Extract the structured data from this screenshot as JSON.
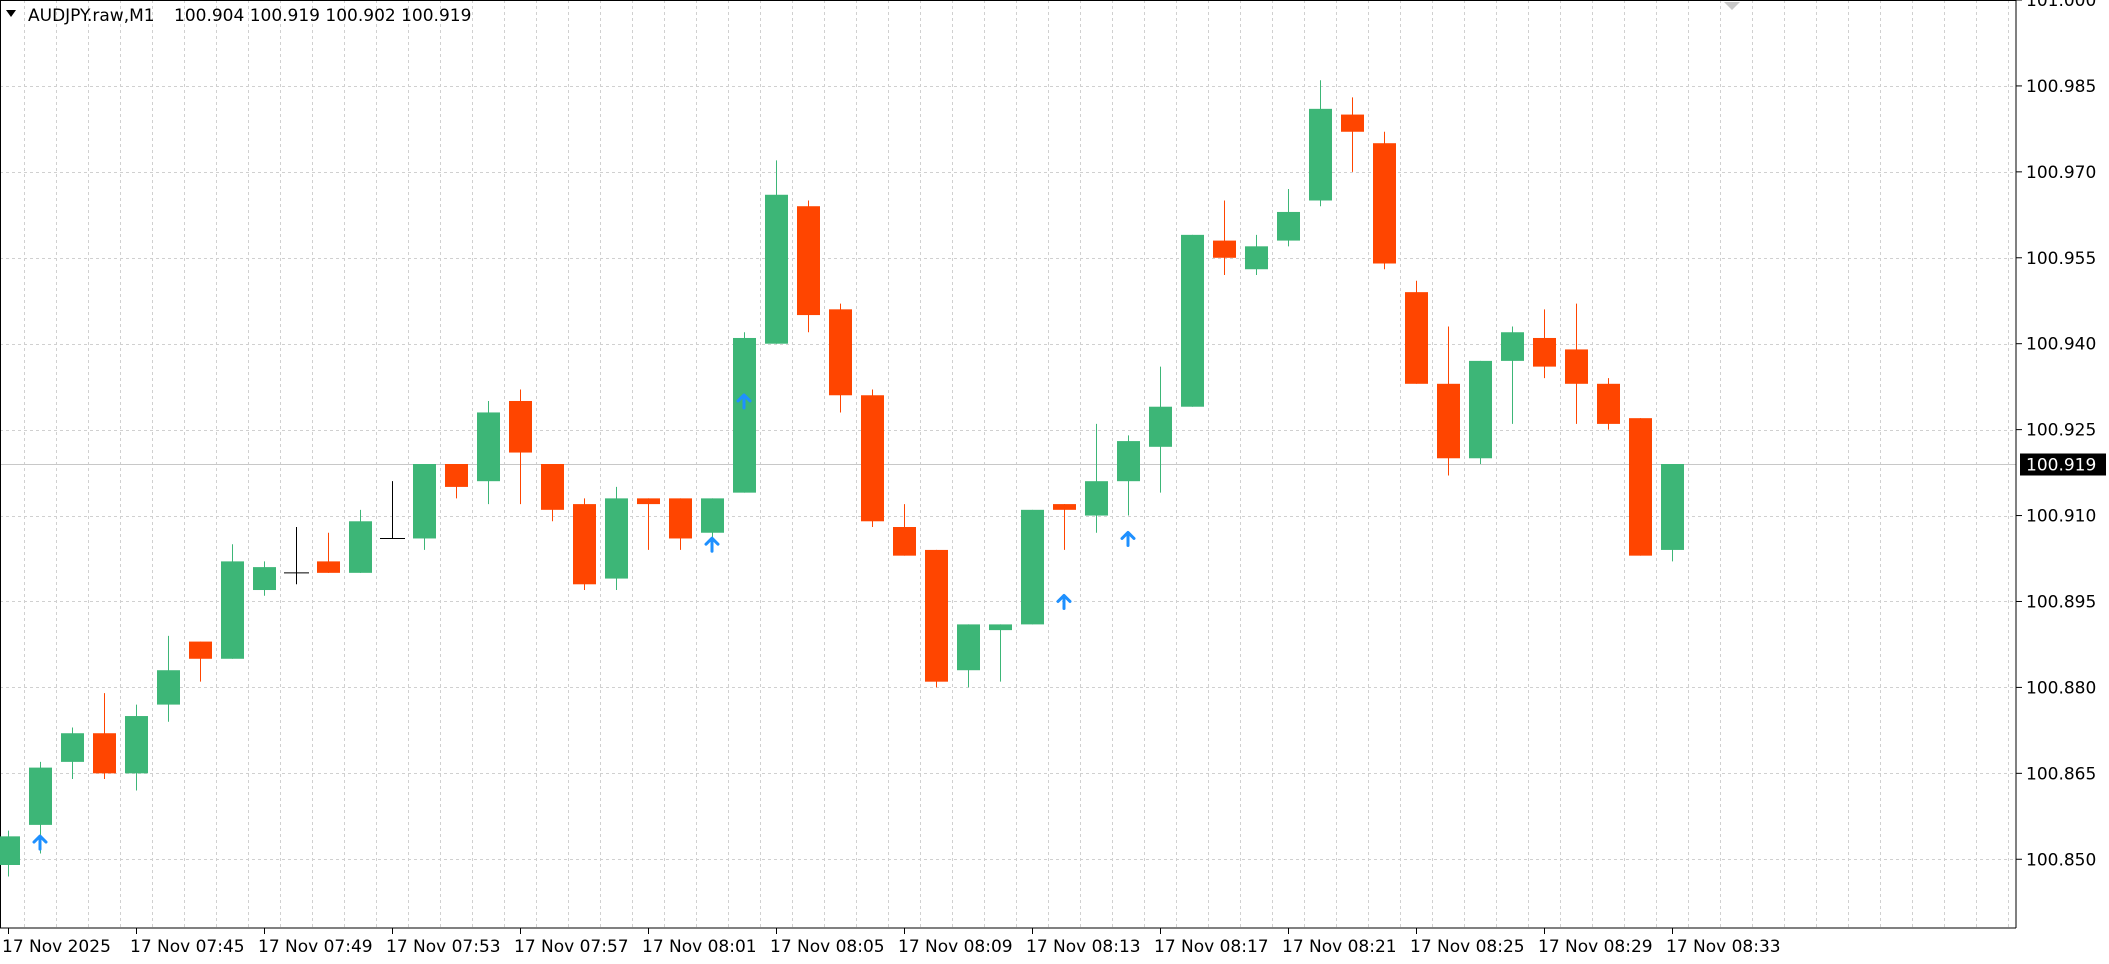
{
  "header": {
    "collapse_icon": "triangle-down-icon",
    "symbol_text": "AUDJPY.raw,M1",
    "ohlc_text": "100.904 100.919 100.902 100.919"
  },
  "colors": {
    "bull": "#3db677",
    "bear": "#ff4500",
    "doji": "#000000",
    "grid": "#d0d0d0",
    "arrow": "#1e90ff",
    "current_line": "#c8c8c8",
    "current_label_bg": "#000000",
    "current_label_fg": "#ffffff"
  },
  "chart_data": {
    "type": "candlestick",
    "symbol": "AUDJPY.raw",
    "timeframe": "M1",
    "ylim": [
      100.838,
      101.0
    ],
    "y_ticks": [
      "100.850",
      "100.865",
      "100.880",
      "100.895",
      "100.910",
      "100.925",
      "100.940",
      "100.955",
      "100.970",
      "100.985",
      "101.000"
    ],
    "current_price": "100.919",
    "x_labels": [
      {
        "index": 0,
        "text": "17 Nov 2025"
      },
      {
        "index": 4,
        "text": "17 Nov 07:45"
      },
      {
        "index": 8,
        "text": "17 Nov 07:49"
      },
      {
        "index": 12,
        "text": "17 Nov 07:53"
      },
      {
        "index": 16,
        "text": "17 Nov 07:57"
      },
      {
        "index": 20,
        "text": "17 Nov 08:01"
      },
      {
        "index": 24,
        "text": "17 Nov 08:05"
      },
      {
        "index": 28,
        "text": "17 Nov 08:09"
      },
      {
        "index": 32,
        "text": "17 Nov 08:13"
      },
      {
        "index": 36,
        "text": "17 Nov 08:17"
      },
      {
        "index": 40,
        "text": "17 Nov 08:21"
      },
      {
        "index": 44,
        "text": "17 Nov 08:25"
      },
      {
        "index": 48,
        "text": "17 Nov 08:29"
      },
      {
        "index": 52,
        "text": "17 Nov 08:33"
      }
    ],
    "candles": [
      {
        "o": 100.849,
        "h": 100.855,
        "l": 100.847,
        "c": 100.854
      },
      {
        "o": 100.856,
        "h": 100.867,
        "l": 100.851,
        "c": 100.866
      },
      {
        "o": 100.867,
        "h": 100.873,
        "l": 100.864,
        "c": 100.872
      },
      {
        "o": 100.872,
        "h": 100.879,
        "l": 100.864,
        "c": 100.865
      },
      {
        "o": 100.865,
        "h": 100.877,
        "l": 100.862,
        "c": 100.875
      },
      {
        "o": 100.877,
        "h": 100.889,
        "l": 100.874,
        "c": 100.883
      },
      {
        "o": 100.888,
        "h": 100.888,
        "l": 100.881,
        "c": 100.885
      },
      {
        "o": 100.885,
        "h": 100.905,
        "l": 100.885,
        "c": 100.902
      },
      {
        "o": 100.897,
        "h": 100.902,
        "l": 100.896,
        "c": 100.901
      },
      {
        "o": 100.9,
        "h": 100.908,
        "l": 100.898,
        "c": 100.9
      },
      {
        "o": 100.902,
        "h": 100.907,
        "l": 100.9,
        "c": 100.9
      },
      {
        "o": 100.9,
        "h": 100.911,
        "l": 100.9,
        "c": 100.909
      },
      {
        "o": 100.906,
        "h": 100.916,
        "l": 100.906,
        "c": 100.906
      },
      {
        "o": 100.906,
        "h": 100.919,
        "l": 100.904,
        "c": 100.919
      },
      {
        "o": 100.919,
        "h": 100.919,
        "l": 100.913,
        "c": 100.915
      },
      {
        "o": 100.916,
        "h": 100.93,
        "l": 100.912,
        "c": 100.928
      },
      {
        "o": 100.93,
        "h": 100.932,
        "l": 100.912,
        "c": 100.921
      },
      {
        "o": 100.919,
        "h": 100.919,
        "l": 100.909,
        "c": 100.911
      },
      {
        "o": 100.912,
        "h": 100.913,
        "l": 100.897,
        "c": 100.898
      },
      {
        "o": 100.899,
        "h": 100.915,
        "l": 100.897,
        "c": 100.913
      },
      {
        "o": 100.913,
        "h": 100.913,
        "l": 100.904,
        "c": 100.912
      },
      {
        "o": 100.913,
        "h": 100.913,
        "l": 100.904,
        "c": 100.906
      },
      {
        "o": 100.907,
        "h": 100.913,
        "l": 100.906,
        "c": 100.913
      },
      {
        "o": 100.914,
        "h": 100.942,
        "l": 100.914,
        "c": 100.941
      },
      {
        "o": 100.94,
        "h": 100.972,
        "l": 100.94,
        "c": 100.966
      },
      {
        "o": 100.964,
        "h": 100.965,
        "l": 100.942,
        "c": 100.945
      },
      {
        "o": 100.946,
        "h": 100.947,
        "l": 100.928,
        "c": 100.931
      },
      {
        "o": 100.931,
        "h": 100.932,
        "l": 100.908,
        "c": 100.909
      },
      {
        "o": 100.908,
        "h": 100.912,
        "l": 100.903,
        "c": 100.903
      },
      {
        "o": 100.904,
        "h": 100.904,
        "l": 100.88,
        "c": 100.881
      },
      {
        "o": 100.883,
        "h": 100.891,
        "l": 100.88,
        "c": 100.891
      },
      {
        "o": 100.89,
        "h": 100.891,
        "l": 100.881,
        "c": 100.891
      },
      {
        "o": 100.891,
        "h": 100.911,
        "l": 100.891,
        "c": 100.911
      },
      {
        "o": 100.912,
        "h": 100.912,
        "l": 100.904,
        "c": 100.911
      },
      {
        "o": 100.91,
        "h": 100.926,
        "l": 100.907,
        "c": 100.916
      },
      {
        "o": 100.916,
        "h": 100.924,
        "l": 100.91,
        "c": 100.923
      },
      {
        "o": 100.922,
        "h": 100.936,
        "l": 100.914,
        "c": 100.929
      },
      {
        "o": 100.929,
        "h": 100.959,
        "l": 100.929,
        "c": 100.959
      },
      {
        "o": 100.958,
        "h": 100.965,
        "l": 100.952,
        "c": 100.955
      },
      {
        "o": 100.953,
        "h": 100.959,
        "l": 100.952,
        "c": 100.957
      },
      {
        "o": 100.958,
        "h": 100.967,
        "l": 100.957,
        "c": 100.963
      },
      {
        "o": 100.965,
        "h": 100.986,
        "l": 100.964,
        "c": 100.981
      },
      {
        "o": 100.98,
        "h": 100.983,
        "l": 100.97,
        "c": 100.977
      },
      {
        "o": 100.975,
        "h": 100.977,
        "l": 100.953,
        "c": 100.954
      },
      {
        "o": 100.949,
        "h": 100.951,
        "l": 100.933,
        "c": 100.933
      },
      {
        "o": 100.933,
        "h": 100.943,
        "l": 100.917,
        "c": 100.92
      },
      {
        "o": 100.92,
        "h": 100.937,
        "l": 100.919,
        "c": 100.937
      },
      {
        "o": 100.937,
        "h": 100.943,
        "l": 100.926,
        "c": 100.942
      },
      {
        "o": 100.941,
        "h": 100.946,
        "l": 100.934,
        "c": 100.936
      },
      {
        "o": 100.939,
        "h": 100.947,
        "l": 100.926,
        "c": 100.933
      },
      {
        "o": 100.933,
        "h": 100.934,
        "l": 100.925,
        "c": 100.926
      },
      {
        "o": 100.927,
        "h": 100.927,
        "l": 100.903,
        "c": 100.903
      },
      {
        "o": 100.904,
        "h": 100.919,
        "l": 100.902,
        "c": 100.919
      }
    ],
    "arrows": [
      {
        "index": 1,
        "price": 100.853
      },
      {
        "index": 22,
        "price": 100.905
      },
      {
        "index": 23,
        "price": 100.93
      },
      {
        "index": 33,
        "price": 100.895
      },
      {
        "index": 35,
        "price": 100.906
      }
    ]
  }
}
